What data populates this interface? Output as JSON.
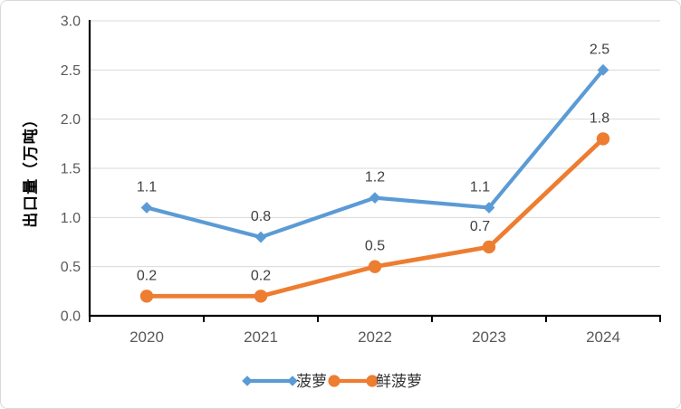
{
  "chart_data": {
    "type": "line",
    "title": "",
    "x_categories": [
      "2020",
      "2021",
      "2022",
      "2023",
      "2024"
    ],
    "series": [
      {
        "name": "菠萝",
        "color": "#5B9BD5",
        "marker": "diamond",
        "values": [
          1.1,
          0.8,
          1.2,
          1.1,
          2.5
        ],
        "point_labels": [
          "1.1",
          "0.8",
          "1.2",
          "1.1",
          "2.5"
        ]
      },
      {
        "name": "鲜菠萝",
        "color": "#ED7D31",
        "marker": "circle",
        "values": [
          0.2,
          0.2,
          0.5,
          0.7,
          1.8
        ],
        "point_labels": [
          "0.2",
          "0.2",
          "0.5",
          "0.7",
          "1.8"
        ]
      }
    ],
    "xlabel": "",
    "ylabel": "出口量（万吨）",
    "ylim": [
      0,
      3.0
    ],
    "yticks": [
      "0.0",
      "0.5",
      "1.0",
      "1.5",
      "2.0",
      "2.5",
      "3.0"
    ],
    "grid": true,
    "legend_position": "bottom-center"
  },
  "colors": {
    "gridline": "#D9D9D9",
    "axis": "#000000",
    "tick_label": "#595959",
    "data_label": "#404040",
    "legend_text": "#333333",
    "chart_border": "#D9D9D9",
    "background": "#FFFFFF"
  }
}
